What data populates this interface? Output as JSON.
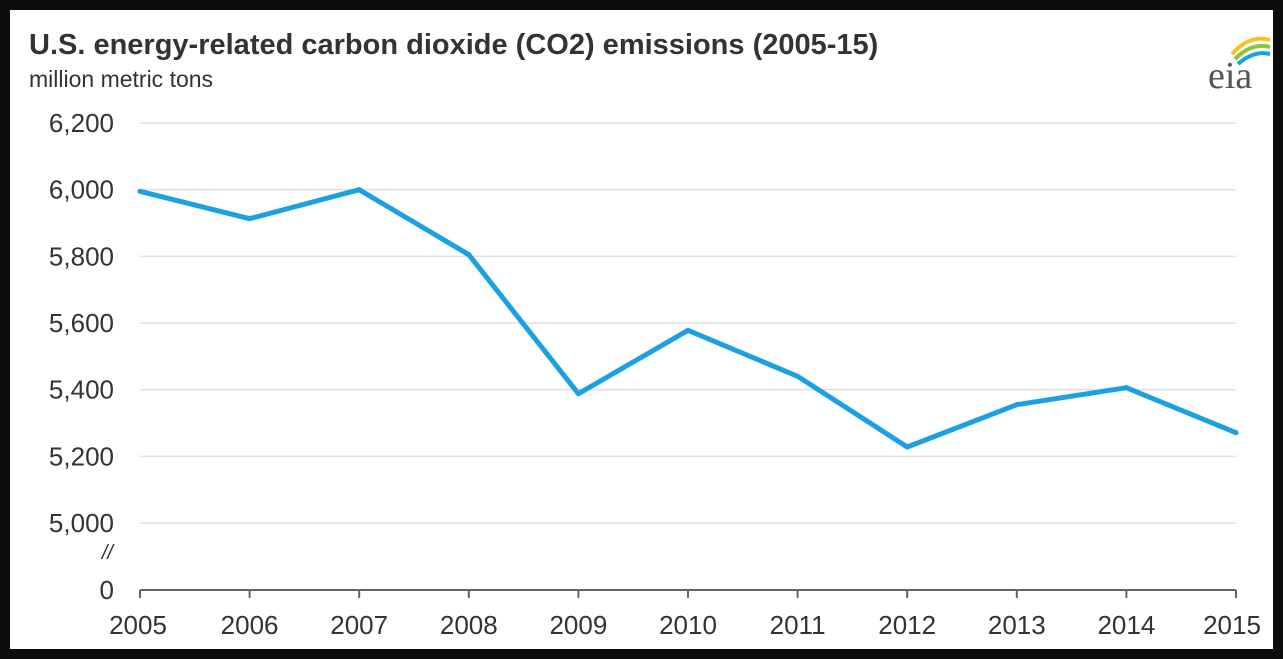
{
  "chart_data": {
    "type": "line",
    "title": "U.S. energy-related carbon dioxide (CO2) emissions (2005-15)",
    "subtitle": "million metric tons",
    "xlabel": "",
    "ylabel": "",
    "axis_break_label": "//",
    "x": [
      2005,
      2006,
      2007,
      2008,
      2009,
      2010,
      2011,
      2012,
      2013,
      2014,
      2015
    ],
    "x_tick_labels": [
      "2005",
      "2006",
      "2007",
      "2008",
      "2009",
      "2010",
      "2011",
      "2012",
      "2013",
      "2014",
      "2015"
    ],
    "series": [
      {
        "values": [
          5995,
          5913,
          6000,
          5805,
          5388,
          5578,
          5440,
          5228,
          5355,
          5406,
          5271
        ],
        "color": "#1ba1e2"
      }
    ],
    "y_ticks": [
      {
        "value": 6200,
        "label": "6,200"
      },
      {
        "value": 6000,
        "label": "6,000"
      },
      {
        "value": 5800,
        "label": "5,800"
      },
      {
        "value": 5600,
        "label": "5,600"
      },
      {
        "value": 5400,
        "label": "5,400"
      },
      {
        "value": 5200,
        "label": "5,200"
      },
      {
        "value": 5000,
        "label": "5,000"
      },
      {
        "value": 0,
        "label": "0"
      }
    ],
    "ylim_upper": [
      5000,
      6200
    ],
    "y_axis_break": true,
    "grid": true,
    "legend": "none"
  },
  "logo": {
    "text": "eia",
    "icon": "eia-logo-icon",
    "colors": [
      "#f6c31d",
      "#8cc63f",
      "#1ba1e2"
    ]
  }
}
